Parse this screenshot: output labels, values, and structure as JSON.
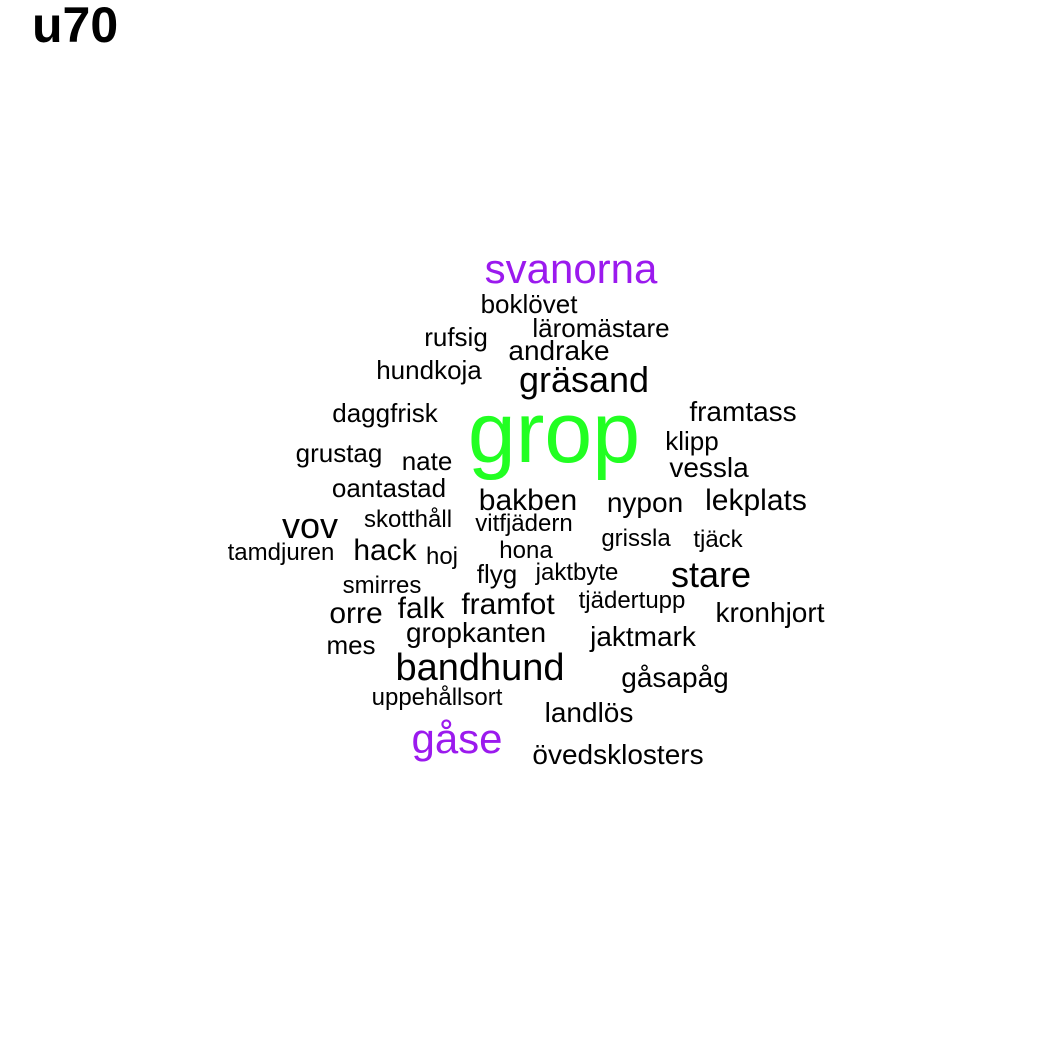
{
  "title": "u70",
  "colors": {
    "top": "#22ff22",
    "second": "#9b1aee",
    "rest": "#000000"
  },
  "words": [
    "grop",
    "svanorna",
    "gåse",
    "bandhund",
    "gräsand",
    "stare",
    "vov",
    "lekplats",
    "bakben",
    "framfot",
    "orre",
    "falk",
    "hack",
    "kronhjort",
    "gropkanten",
    "landlös",
    "övedsklosters",
    "gåsapåg",
    "jaktmark",
    "nypon",
    "vessla",
    "framtass",
    "andrake",
    "boklövet",
    "rufsig",
    "läromästare",
    "hundkoja",
    "daggfrisk",
    "klipp",
    "grustag",
    "nate",
    "oantastad",
    "skotthåll",
    "vitfjädern",
    "tamdjuren",
    "hoj",
    "hona",
    "grissla",
    "tjäck",
    "flyg",
    "jaktbyte",
    "smirres",
    "tjädertupp",
    "mes",
    "uppehållsort"
  ]
}
